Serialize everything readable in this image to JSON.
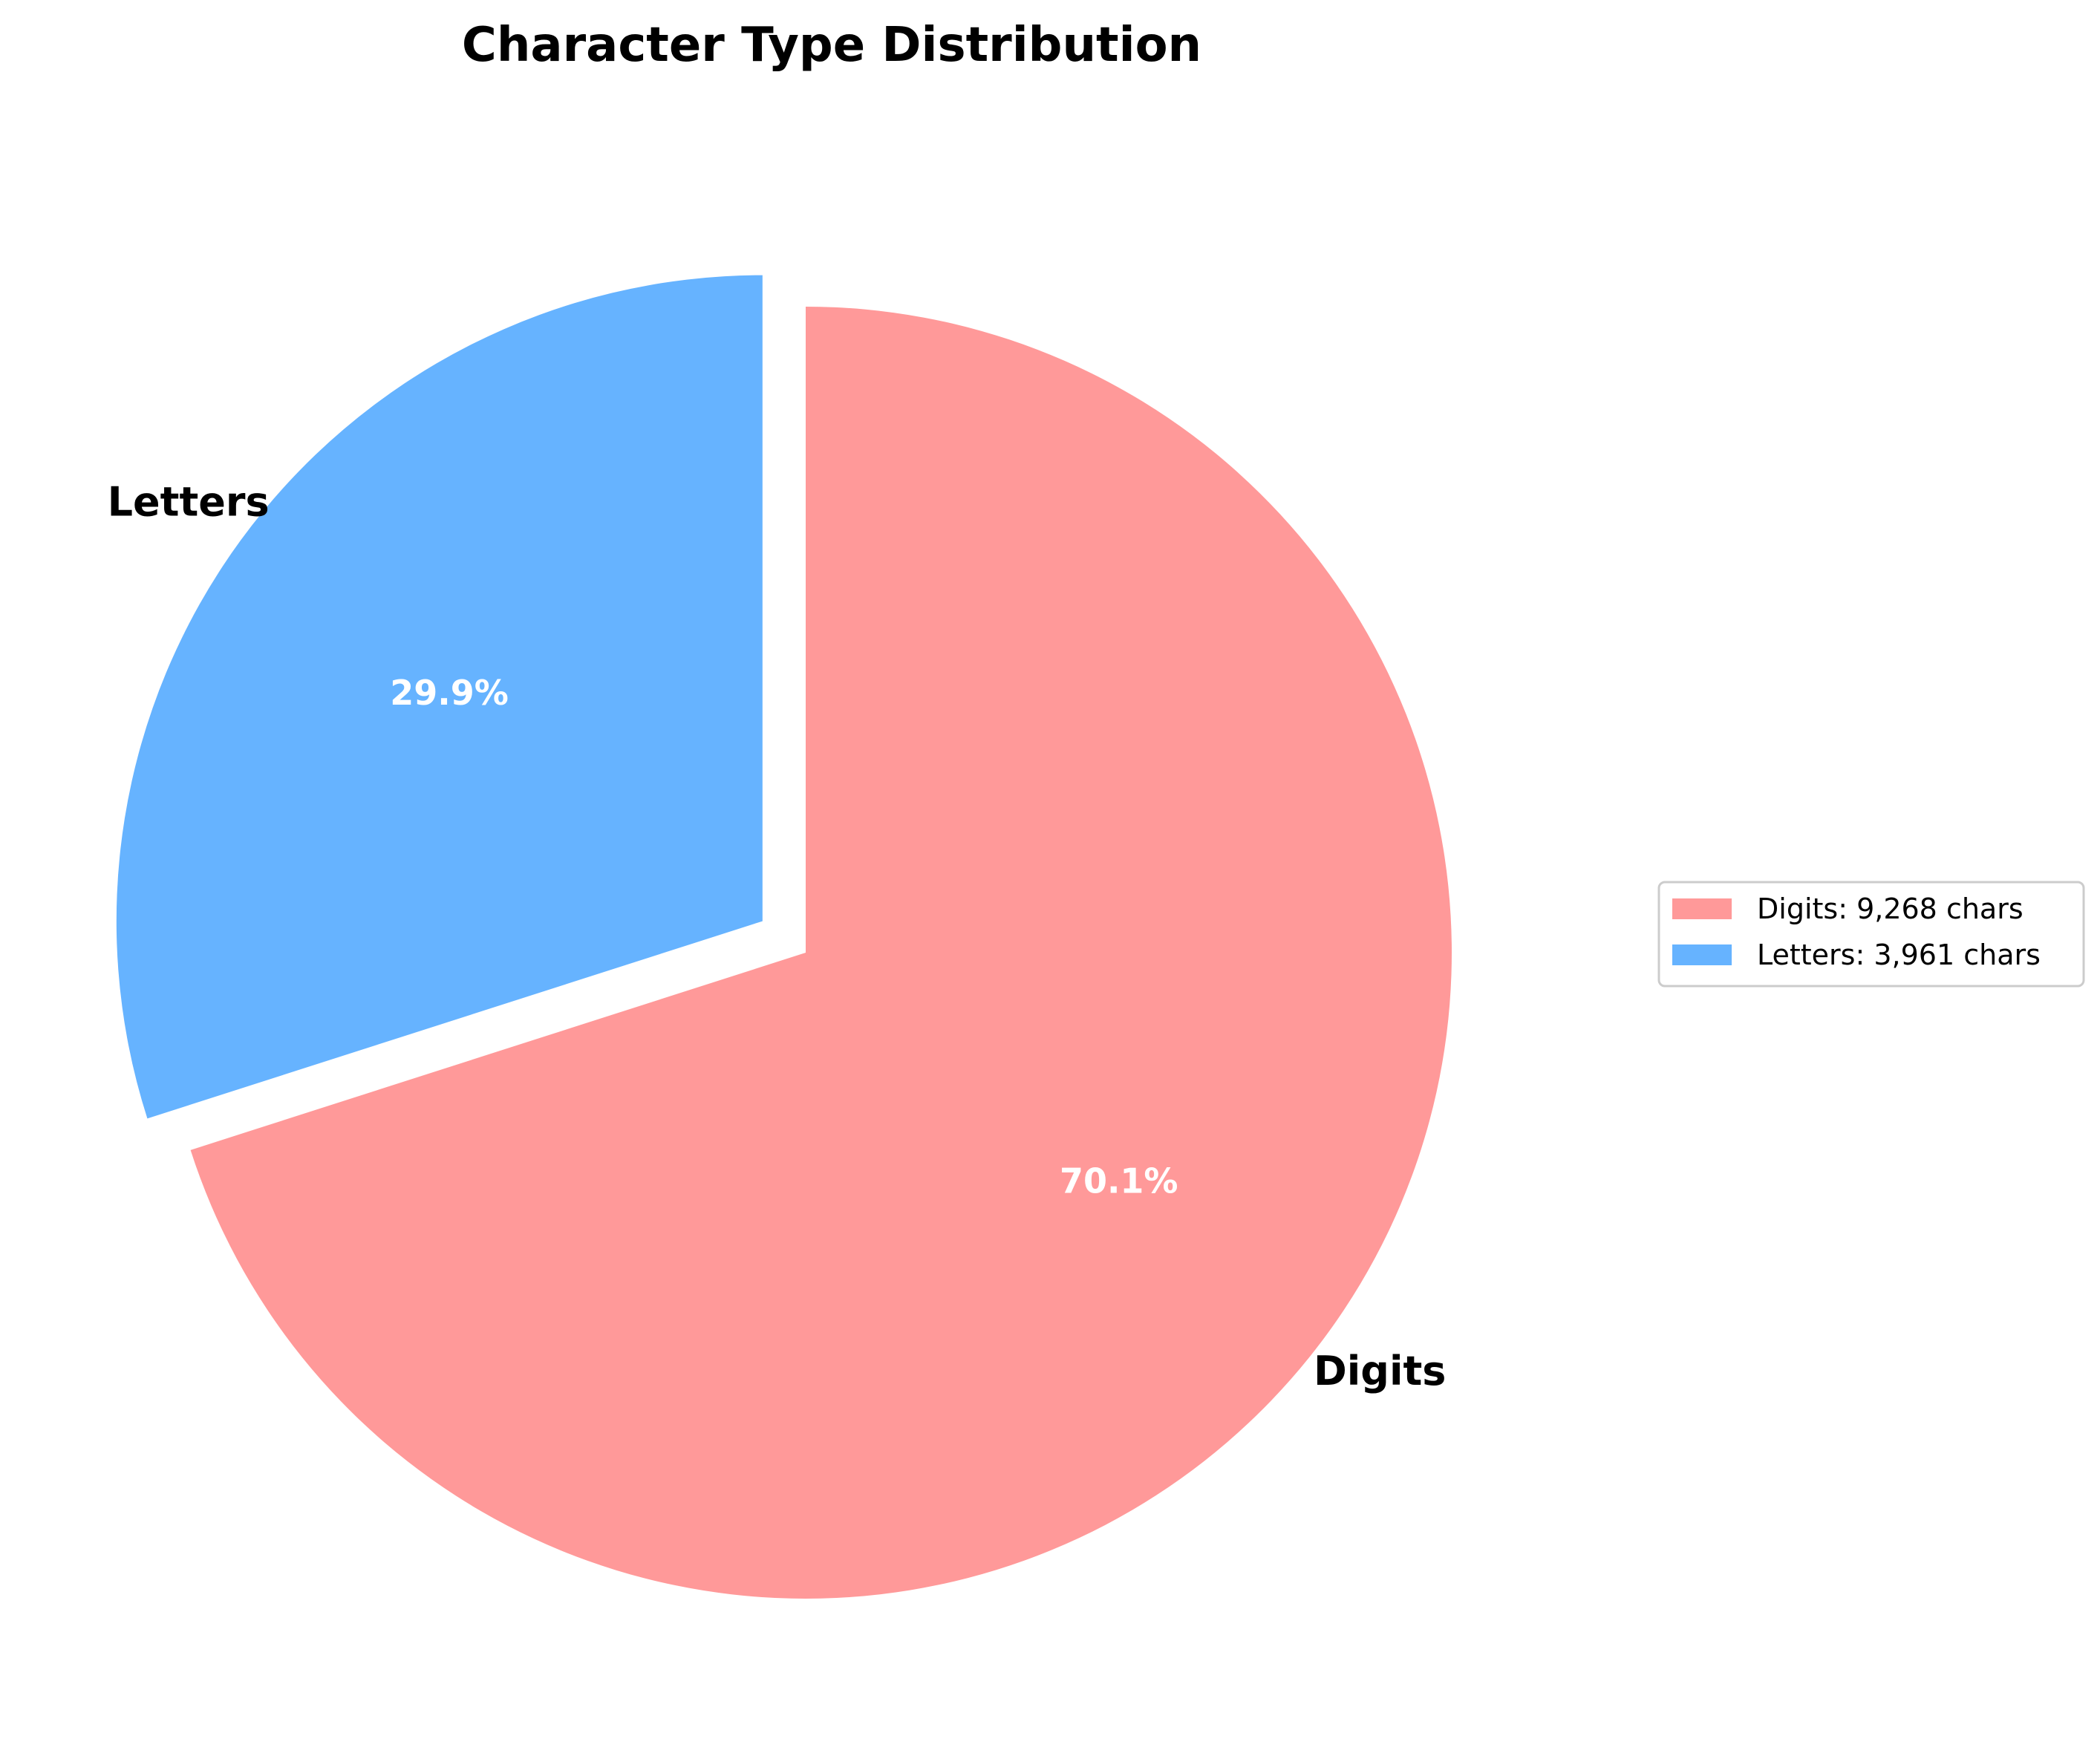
{
  "chart_data": {
    "type": "pie",
    "title": "Character Type Distribution",
    "start_angle_deg": 90,
    "direction": "clockwise",
    "categories": [
      "Digits",
      "Letters"
    ],
    "values": [
      9268,
      3961
    ],
    "percentages": [
      "70.1%",
      "29.9%"
    ],
    "colors": [
      "#ff9999",
      "#66b3ff"
    ],
    "exploded": [
      false,
      true
    ],
    "legend": {
      "placement": "center-right",
      "entries": [
        "Digits: 9,268 chars",
        "Letters: 3,961 chars"
      ]
    }
  }
}
